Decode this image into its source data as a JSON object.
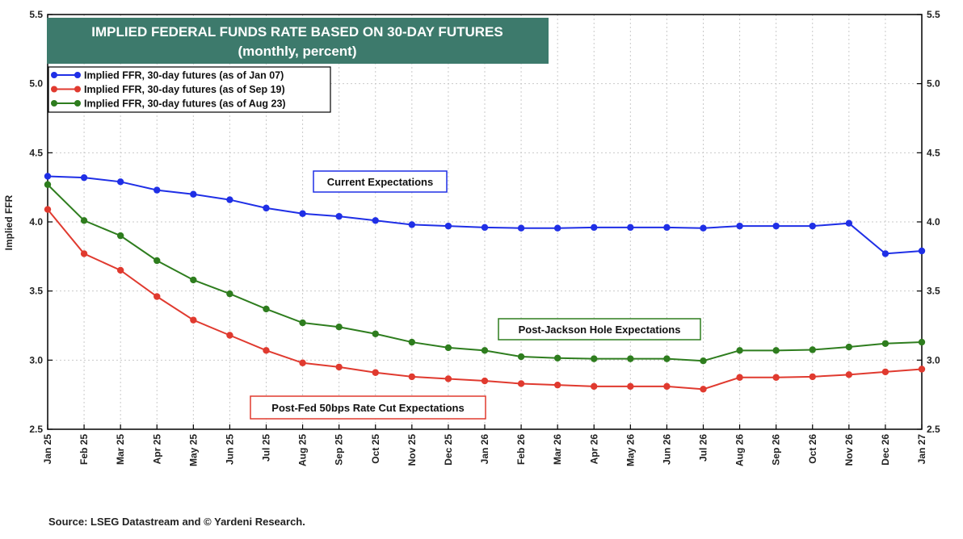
{
  "chart_data": {
    "type": "line",
    "title": "IMPLIED FEDERAL FUNDS RATE BASED ON 30-DAY FUTURES",
    "subtitle": "(monthly, percent)",
    "ylabel": "Implied FFR",
    "ylim": [
      2.5,
      5.5
    ],
    "yticks": [
      "2.5",
      "3.0",
      "3.5",
      "4.0",
      "4.5",
      "5.0",
      "5.5"
    ],
    "categories": [
      "Jan 25",
      "Feb 25",
      "Mar 25",
      "Apr 25",
      "May 25",
      "Jun 25",
      "Jul 25",
      "Aug 25",
      "Sep 25",
      "Oct 25",
      "Nov 25",
      "Dec 25",
      "Jan 26",
      "Feb 26",
      "Mar 26",
      "Apr 26",
      "May 26",
      "Jun 26",
      "Jul 26",
      "Aug 26",
      "Sep 26",
      "Oct 26",
      "Nov 26",
      "Dec 26",
      "Jan 27"
    ],
    "legend_position": "top-left",
    "grid": true,
    "series": [
      {
        "name": "Implied FFR, 30-day futures (as of Jan 07)",
        "color": "#1f2fe6",
        "values": [
          4.33,
          4.32,
          4.29,
          4.23,
          4.2,
          4.16,
          4.1,
          4.06,
          4.04,
          4.01,
          3.98,
          3.97,
          3.96,
          3.955,
          3.955,
          3.96,
          3.96,
          3.96,
          3.955,
          3.97,
          3.97,
          3.97,
          3.99,
          3.77,
          3.79
        ]
      },
      {
        "name": "Implied FFR, 30-day futures (as of Sep 19)",
        "color": "#e03a2f",
        "values": [
          4.09,
          3.77,
          3.65,
          3.46,
          3.29,
          3.18,
          3.07,
          2.98,
          2.95,
          2.91,
          2.88,
          2.865,
          2.85,
          2.83,
          2.82,
          2.81,
          2.81,
          2.81,
          2.79,
          2.875,
          2.875,
          2.88,
          2.895,
          2.915,
          2.935
        ]
      },
      {
        "name": "Implied FFR, 30-day futures (as of Aug 23)",
        "color": "#2e7d1e",
        "values": [
          4.27,
          4.01,
          3.9,
          3.72,
          3.58,
          3.48,
          3.37,
          3.27,
          3.24,
          3.19,
          3.13,
          3.09,
          3.07,
          3.025,
          3.015,
          3.01,
          3.01,
          3.01,
          2.995,
          3.07,
          3.07,
          3.075,
          3.095,
          3.12,
          3.13
        ]
      }
    ],
    "annotations": [
      {
        "text": "Current Expectations",
        "color": "#1f2fe6"
      },
      {
        "text": "Post-Jackson Hole Expectations",
        "color": "#2e7d1e"
      },
      {
        "text": "Post-Fed 50bps Rate Cut Expectations",
        "color": "#e03a2f"
      }
    ],
    "title_bg": "#3d7a6c"
  },
  "source": "Source: LSEG Datastream and © Yardeni Research."
}
